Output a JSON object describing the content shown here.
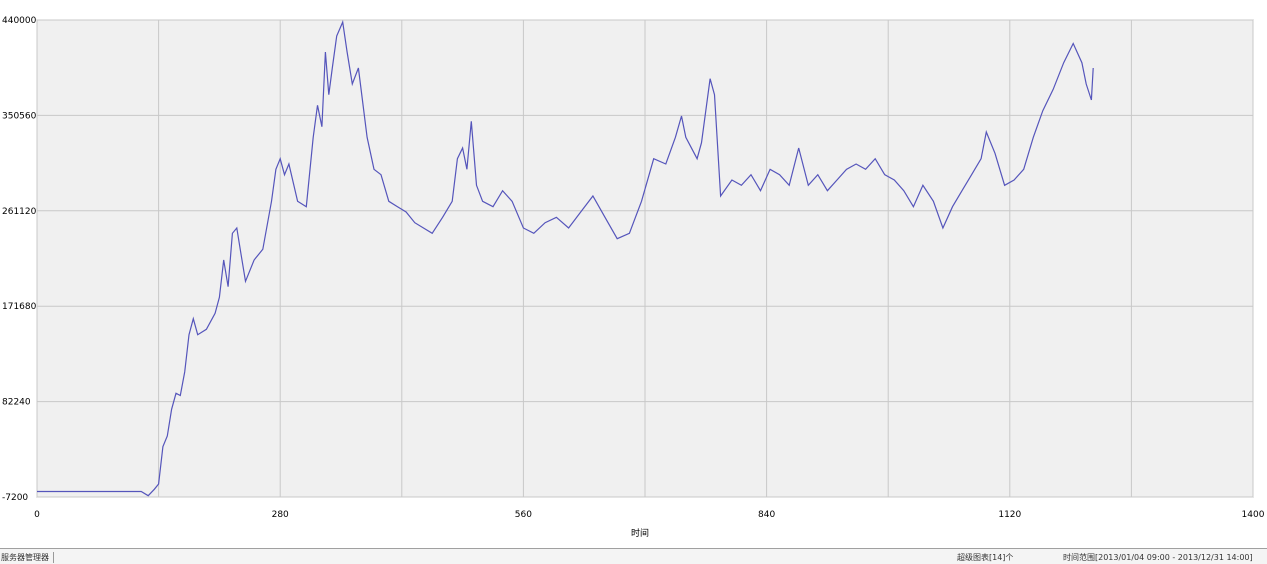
{
  "chart_data": {
    "type": "line",
    "x": [
      0,
      120,
      128,
      135,
      140,
      145,
      150,
      155,
      160,
      165,
      170,
      175,
      180,
      185,
      195,
      205,
      210,
      215,
      220,
      225,
      230,
      235,
      240,
      250,
      260,
      270,
      275,
      280,
      285,
      290,
      300,
      310,
      318,
      323,
      328,
      332,
      336,
      340,
      345,
      352,
      357,
      363,
      370,
      380,
      388,
      396,
      405,
      415,
      425,
      435,
      445,
      455,
      467,
      478,
      484,
      490,
      495,
      500,
      506,
      513,
      525,
      536,
      547,
      560,
      572,
      585,
      598,
      612,
      626,
      640,
      654,
      668,
      682,
      696,
      710,
      724,
      735,
      742,
      747,
      760,
      765,
      775,
      780,
      787,
      800,
      811,
      822,
      833,
      844,
      855,
      866,
      877,
      888,
      899,
      910,
      921,
      932,
      943,
      954,
      965,
      976,
      987,
      998,
      1009,
      1020,
      1032,
      1043,
      1054,
      1065,
      1076,
      1087,
      1093,
      1103,
      1114,
      1125,
      1136,
      1147,
      1158,
      1170,
      1182,
      1193,
      1203,
      1208,
      1214,
      1216
    ],
    "series": [
      {
        "color": "#5555bb",
        "values": [
          -2000,
          -2000,
          -6000,
          0,
          5000,
          40000,
          50000,
          75000,
          90000,
          88000,
          110000,
          145000,
          160000,
          145000,
          150000,
          165000,
          180000,
          215000,
          190000,
          240000,
          245000,
          220000,
          195000,
          215000,
          225000,
          270000,
          300000,
          310000,
          295000,
          305000,
          270000,
          265000,
          330000,
          360000,
          340000,
          410000,
          370000,
          395000,
          425000,
          438000,
          410000,
          380000,
          395000,
          330000,
          300000,
          295000,
          270000,
          265000,
          260000,
          250000,
          245000,
          240000,
          255000,
          270000,
          310000,
          320000,
          300000,
          345000,
          285000,
          270000,
          265000,
          280000,
          270000,
          245000,
          240000,
          250000,
          255000,
          245000,
          260000,
          275000,
          255000,
          235000,
          240000,
          270000,
          310000,
          305000,
          330000,
          350000,
          330000,
          310000,
          325000,
          385000,
          370000,
          275000,
          290000,
          285000,
          295000,
          280000,
          300000,
          295000,
          285000,
          320000,
          285000,
          295000,
          280000,
          290000,
          300000,
          305000,
          300000,
          310000,
          295000,
          290000,
          280000,
          265000,
          285000,
          270000,
          245000,
          265000,
          280000,
          295000,
          310000,
          335000,
          315000,
          285000,
          290000,
          300000,
          330000,
          355000,
          375000,
          400000,
          418000,
          400000,
          380000,
          365000,
          395000
        ]
      }
    ],
    "xlim": [
      0,
      1400
    ],
    "xticks": [
      0,
      280,
      560,
      840,
      1120,
      1400
    ],
    "ylim": [
      -7200,
      440000
    ],
    "yticks": [
      -7200,
      82240,
      171680,
      261120,
      350560,
      440000
    ],
    "grid": true,
    "xlabel": "时间"
  },
  "status_bar": {
    "left": "服务器管理器",
    "charts": "超级图表[14]个",
    "range": "时间范围[2013/01/04 09:00 - 2013/12/31 14:00]"
  }
}
